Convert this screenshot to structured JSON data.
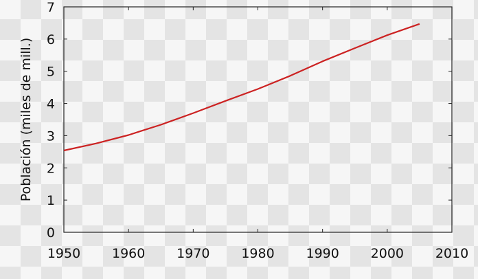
{
  "chart_data": {
    "type": "line",
    "title": "",
    "xlabel": "",
    "ylabel": "Población (miles de mill.)",
    "xlim": [
      1950,
      2010
    ],
    "ylim": [
      0,
      7
    ],
    "xticks": [
      1950,
      1960,
      1970,
      1980,
      1990,
      2000,
      2010
    ],
    "yticks": [
      0,
      1,
      2,
      3,
      4,
      5,
      6,
      7
    ],
    "grid": false,
    "line_color": "#cc2222",
    "series": [
      {
        "x": [
          1950,
          1955,
          1960,
          1962,
          1965,
          1970,
          1975,
          1980,
          1985,
          1990,
          1995,
          2000,
          2005
        ],
        "values": [
          2.54,
          2.76,
          3.02,
          3.15,
          3.34,
          3.7,
          4.08,
          4.45,
          4.86,
          5.31,
          5.72,
          6.12,
          6.47
        ]
      }
    ]
  }
}
